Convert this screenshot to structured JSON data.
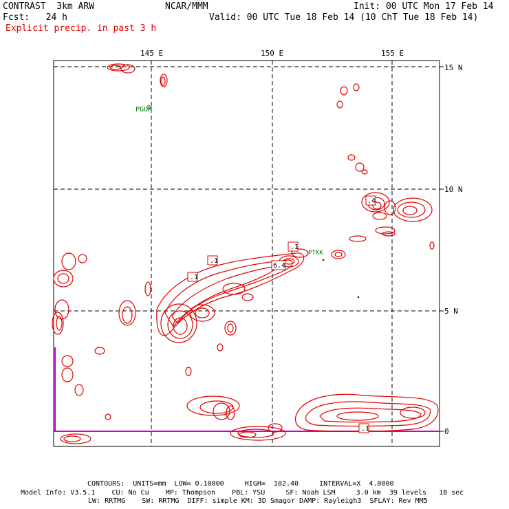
{
  "header": {
    "model": "CONTRAST  3km ARW",
    "center": "NCAR/MMM",
    "init": "Init: 00 UTC Mon 17 Feb 14",
    "fcst": "Fcst:   24 h",
    "valid": "Valid: 00 UTC Tue 18 Feb 14 (10 ChT Tue 18 Feb 14)",
    "field": "Explicit precip. in past 3 h"
  },
  "axes": {
    "lon_labels": [
      "145 E",
      "150 E",
      "155 E"
    ],
    "lat_labels": [
      "15 N",
      "10 N",
      "5 N",
      "0"
    ]
  },
  "stations": [
    {
      "name": "PGUM"
    },
    {
      "name": "PTKK"
    }
  ],
  "contour_labels": [
    ".1",
    ".1",
    ".1",
    ".1",
    "6.4",
    ".4",
    ".1"
  ],
  "colors": {
    "precip": "#e00000",
    "station": "#007a00",
    "equator": "#cc00cc",
    "grid": "#000000"
  },
  "footer": {
    "contours": "CONTOURS:  UNITS=mm  LOW= 0.10000     HIGH=  102.40     INTERVAL=X  4.0000",
    "info1": "Model Info: V3.5.1    CU: No Cu    MP: Thompson    PBL: YSU     SF: Noah LSM     3.0 km  39 levels   18 sec",
    "info2": "LW: RRTMG    SW: RRTMG  DIFF: simple KM: 3D Smagor DAMP: Rayleigh3  SFLAY: Rev MM5"
  }
}
